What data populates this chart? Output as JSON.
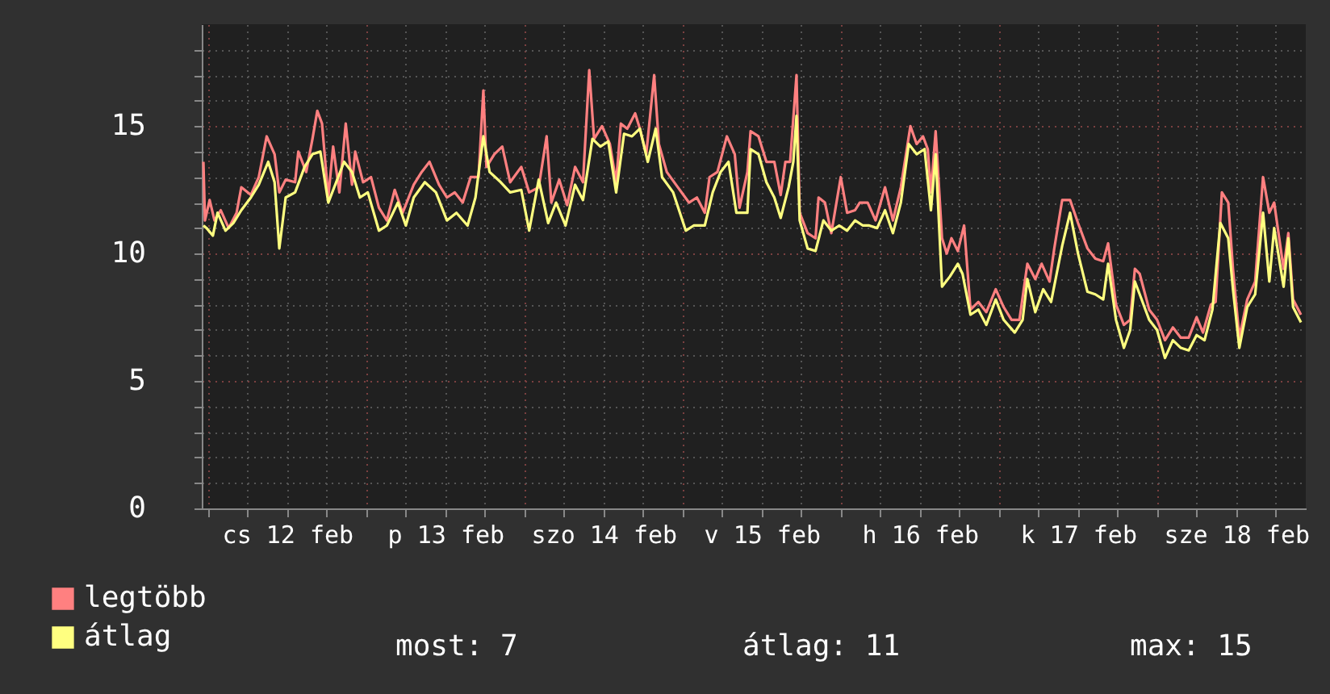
{
  "chart_data": {
    "type": "line",
    "xlim": [
      "--02-11T23:02",
      "--02-18T22:34"
    ],
    "ylim": [
      0,
      19
    ],
    "xticks": [
      {
        "value": "--02-12T00:00",
        "label": null
      },
      {
        "value": "--02-12T06:00",
        "label": null
      },
      {
        "value": "--02-12T12:00",
        "label": "cs 12 feb"
      },
      {
        "value": "--02-12T18:00",
        "label": null
      },
      {
        "value": "--02-13T00:00",
        "label": null
      },
      {
        "value": "--02-13T06:00",
        "label": null
      },
      {
        "value": "--02-13T12:00",
        "label": "p 13 feb"
      },
      {
        "value": "--02-13T18:00",
        "label": null
      },
      {
        "value": "--02-14T00:00",
        "label": null
      },
      {
        "value": "--02-14T06:00",
        "label": null
      },
      {
        "value": "--02-14T12:00",
        "label": "szo 14 feb"
      },
      {
        "value": "--02-14T18:00",
        "label": null
      },
      {
        "value": "--02-15T00:00",
        "label": null
      },
      {
        "value": "--02-15T06:00",
        "label": null
      },
      {
        "value": "--02-15T12:00",
        "label": "v 15 feb"
      },
      {
        "value": "--02-15T18:00",
        "label": null
      },
      {
        "value": "--02-16T00:00",
        "label": null
      },
      {
        "value": "--02-16T06:00",
        "label": null
      },
      {
        "value": "--02-16T12:00",
        "label": "h 16 feb"
      },
      {
        "value": "--02-16T18:00",
        "label": null
      },
      {
        "value": "--02-17T00:00",
        "label": null
      },
      {
        "value": "--02-17T06:00",
        "label": null
      },
      {
        "value": "--02-17T12:00",
        "label": "k 17 feb"
      },
      {
        "value": "--02-17T18:00",
        "label": null
      },
      {
        "value": "--02-18T00:00",
        "label": null
      },
      {
        "value": "--02-18T06:00",
        "label": null
      },
      {
        "value": "--02-18T12:00",
        "label": "sze 18 feb"
      },
      {
        "value": "--02-18T18:00",
        "label": null
      }
    ],
    "yticks": [
      0,
      {
        "value": 1,
        "label": null
      },
      {
        "value": 2,
        "label": null
      },
      {
        "value": 3,
        "label": null
      },
      {
        "value": 4,
        "label": null
      },
      5,
      {
        "value": 6,
        "label": null
      },
      {
        "value": 7,
        "label": null
      },
      {
        "value": 8,
        "label": null
      },
      {
        "value": 9,
        "label": null
      },
      10,
      {
        "value": 11,
        "label": null
      },
      {
        "value": 12,
        "label": null
      },
      {
        "value": 13,
        "label": null
      },
      {
        "value": 14,
        "label": null
      },
      15,
      {
        "value": 16,
        "label": null
      },
      {
        "value": 17,
        "label": null
      },
      {
        "value": 18,
        "label": null
      }
    ],
    "grid": true,
    "legend": "bottom left",
    "line_style": "solid",
    "marker": "none",
    "annotations": [
      "most: 7",
      "átlag: 11",
      "max: 15"
    ],
    "series": [
      {
        "name": "legtöbb",
        "color": "#ff8080",
        "x": [
          "--02-11T23:17",
          "--02-11T23:31",
          "--02-12T00:14",
          "--02-12T00:58",
          "--02-12T01:55",
          "--02-12T03:07",
          "--02-12T04:19",
          "--02-12T05:02",
          "--02-12T06:29",
          "--02-12T07:41",
          "--02-12T08:53",
          "--02-12T10:05",
          "--02-12T10:48",
          "--02-12T11:46",
          "--02-12T13:12",
          "--02-12T13:41",
          "--02-12T14:53",
          "--02-12T15:50",
          "--02-12T16:34",
          "--02-12T17:17",
          "--02-12T18:14",
          "--02-12T18:58",
          "--02-12T19:55",
          "--02-12T20:53",
          "--02-12T21:50",
          "--02-12T22:19",
          "--02-12T23:31",
          "--02-13T00:43",
          "--02-13T01:55",
          "--02-13T03:07",
          "--02-13T04:19",
          "--02-13T05:31",
          "--02-13T07:12",
          "--02-13T08:24",
          "--02-13T09:36",
          "--02-13T11:02",
          "--02-13T12:14",
          "--02-13T13:26",
          "--02-13T14:38",
          "--02-13T15:50",
          "--02-13T17:02",
          "--02-13T17:46",
          "--02-13T18:14",
          "--02-13T19:26",
          "--02-13T20:38",
          "--02-13T21:50",
          "--02-13T23:31",
          "--02-14T00:43",
          "--02-14T02:10",
          "--02-14T03:22",
          "--02-14T04:05",
          "--02-14T05:17",
          "--02-14T06:29",
          "--02-14T07:41",
          "--02-14T08:53",
          "--02-14T09:50",
          "--02-14T10:34",
          "--02-14T11:46",
          "--02-14T12:58",
          "--02-14T13:55",
          "--02-14T14:38",
          "--02-14T15:36",
          "--02-14T16:48",
          "--02-14T17:31",
          "--02-14T18:29",
          "--02-14T19:41",
          "--02-14T20:24",
          "--02-14T21:36",
          "--02-14T23:17",
          "--02-15T00:58",
          "--02-15T02:10",
          "--02-15T03:22",
          "--02-15T04:05",
          "--02-15T05:17",
          "--02-15T06:43",
          "--02-15T07:55",
          "--02-15T08:38",
          "--02-15T09:50",
          "--02-15T10:19",
          "--02-15T11:31",
          "--02-15T12:43",
          "--02-15T13:55",
          "--02-15T14:53",
          "--02-15T15:36",
          "--02-15T16:19",
          "--02-15T17:17",
          "--02-15T17:46",
          "--02-15T18:58",
          "--02-15T20:10",
          "--02-15T20:38",
          "--02-15T21:36",
          "--02-15T22:34",
          "--02-16T00:00",
          "--02-16T00:58",
          "--02-16T02:10",
          "--02-16T02:53",
          "--02-16T04:05",
          "--02-16T05:17",
          "--02-16T06:43",
          "--02-16T07:55",
          "--02-16T09:07",
          "--02-16T10:34",
          "--02-16T11:31",
          "--02-16T12:29",
          "--02-16T13:12",
          "--02-16T13:41",
          "--02-16T14:24",
          "--02-16T15:22",
          "--02-16T16:05",
          "--02-16T16:48",
          "--02-16T17:46",
          "--02-16T18:43",
          "--02-16T19:41",
          "--02-16T20:53",
          "--02-16T22:05",
          "--02-16T23:31",
          "--02-17T00:43",
          "--02-17T01:55",
          "--02-17T03:07",
          "--02-17T04:19",
          "--02-17T05:31",
          "--02-17T06:29",
          "--02-17T07:41",
          "--02-17T08:24",
          "--02-17T09:36",
          "--02-17T10:48",
          "--02-17T12:00",
          "--02-17T13:26",
          "--02-17T14:38",
          "--02-17T15:50",
          "--02-17T16:34",
          "--02-17T17:46",
          "--02-17T18:58",
          "--02-17T19:55",
          "--02-17T20:38",
          "--02-17T21:22",
          "--02-17T22:48",
          "--02-18T00:00",
          "--02-18T01:12",
          "--02-18T02:24",
          "--02-18T03:36",
          "--02-18T04:48",
          "--02-18T06:00",
          "--02-18T06:58",
          "--02-18T08:10",
          "--02-18T08:53",
          "--02-18T09:50",
          "--02-18T10:48",
          "--02-18T11:31",
          "--02-18T12:29",
          "--02-18T13:41",
          "--02-18T14:53",
          "--02-18T16:05",
          "--02-18T17:02",
          "--02-18T17:46",
          "--02-18T19:12",
          "--02-18T19:55",
          "--02-18T20:38",
          "--02-18T21:50"
        ],
        "values": [
          13.6,
          11.3,
          12.1,
          11.3,
          11.7,
          11.0,
          11.6,
          12.6,
          12.3,
          13.0,
          14.6,
          13.9,
          12.4,
          12.9,
          12.8,
          14.0,
          13.2,
          14.5,
          15.6,
          15.1,
          12.2,
          14.2,
          12.4,
          15.1,
          12.7,
          14.0,
          12.8,
          13.0,
          11.8,
          11.3,
          12.5,
          11.6,
          12.7,
          13.2,
          13.6,
          12.7,
          12.2,
          12.4,
          12.0,
          13.0,
          13.0,
          16.4,
          13.4,
          13.9,
          14.2,
          12.8,
          13.4,
          12.4,
          12.6,
          14.6,
          12.0,
          12.9,
          11.9,
          13.4,
          12.8,
          17.2,
          14.5,
          15.0,
          14.3,
          12.8,
          15.1,
          14.9,
          15.5,
          14.9,
          13.9,
          17.0,
          14.3,
          13.2,
          12.6,
          12.0,
          12.2,
          11.6,
          13.0,
          13.2,
          14.6,
          13.9,
          11.8,
          13.2,
          14.8,
          14.6,
          13.6,
          13.6,
          12.3,
          13.6,
          13.6,
          17.0,
          11.6,
          10.8,
          10.6,
          12.2,
          12.0,
          10.8,
          13.0,
          11.6,
          11.7,
          12.0,
          12.0,
          11.3,
          12.6,
          11.3,
          12.6,
          15.0,
          14.3,
          14.6,
          14.1,
          12.4,
          14.8,
          10.6,
          10.0,
          10.6,
          10.1,
          11.1,
          7.8,
          8.1,
          7.7,
          8.6,
          7.9,
          7.4,
          7.4,
          9.6,
          9.0,
          9.6,
          8.9,
          10.2,
          12.1,
          12.1,
          11.2,
          10.2,
          9.8,
          9.7,
          10.4,
          8.0,
          7.2,
          7.4,
          9.4,
          9.2,
          7.8,
          7.4,
          6.6,
          7.1,
          6.7,
          6.7,
          7.5,
          6.9,
          8.0,
          8.1,
          12.4,
          12.0,
          9.4,
          6.7,
          8.2,
          8.9,
          13.0,
          11.6,
          12.0,
          9.4,
          10.8,
          8.2,
          7.6
        ]
      },
      {
        "name": "átlag",
        "color": "#ffff80",
        "x": [
          "--02-11T23:17",
          "--02-11T23:46",
          "--02-12T00:43",
          "--02-12T01:26",
          "--02-12T02:38",
          "--02-12T03:50",
          "--02-12T05:02",
          "--02-12T06:29",
          "--02-12T07:41",
          "--02-12T09:07",
          "--02-12T10:05",
          "--02-12T10:48",
          "--02-12T11:46",
          "--02-12T13:12",
          "--02-12T14:38",
          "--02-12T15:50",
          "--02-12T17:02",
          "--02-12T18:14",
          "--02-12T19:26",
          "--02-12T20:38",
          "--02-12T21:50",
          "--02-12T23:02",
          "--02-13T00:14",
          "--02-13T01:55",
          "--02-13T03:07",
          "--02-13T04:48",
          "--02-13T06:00",
          "--02-13T07:12",
          "--02-13T08:53",
          "--02-13T10:34",
          "--02-13T12:14",
          "--02-13T13:41",
          "--02-13T15:22",
          "--02-13T16:34",
          "--02-13T17:46",
          "--02-13T18:43",
          "--02-13T20:24",
          "--02-13T21:50",
          "--02-13T23:31",
          "--02-14T00:43",
          "--02-14T02:10",
          "--02-14T03:36",
          "--02-14T04:48",
          "--02-14T06:14",
          "--02-14T07:41",
          "--02-14T08:53",
          "--02-14T10:19",
          "--02-14T11:31",
          "--02-14T12:43",
          "--02-14T13:55",
          "--02-14T15:07",
          "--02-14T16:19",
          "--02-14T17:31",
          "--02-14T18:43",
          "--02-14T19:55",
          "--02-14T20:53",
          "--02-14T22:34",
          "--02-15T00:29",
          "--02-15T01:41",
          "--02-15T03:22",
          "--02-15T04:34",
          "--02-15T05:46",
          "--02-15T06:58",
          "--02-15T08:10",
          "--02-15T09:50",
          "--02-15T10:19",
          "--02-15T11:31",
          "--02-15T12:43",
          "--02-15T13:55",
          "--02-15T14:53",
          "--02-15T16:05",
          "--02-15T16:48",
          "--02-15T17:17",
          "--02-15T17:46",
          "--02-15T18:58",
          "--02-15T20:10",
          "--02-15T21:22",
          "--02-15T22:34",
          "--02-15T23:46",
          "--02-16T00:58",
          "--02-16T02:10",
          "--02-16T03:22",
          "--02-16T04:19",
          "--02-16T05:31",
          "--02-16T06:43",
          "--02-16T07:55",
          "--02-16T09:07",
          "--02-16T10:19",
          "--02-16T11:31",
          "--02-16T12:43",
          "--02-16T13:41",
          "--02-16T14:24",
          "--02-16T15:22",
          "--02-16T16:34",
          "--02-16T17:46",
          "--02-16T18:29",
          "--02-16T19:41",
          "--02-16T20:53",
          "--02-16T22:05",
          "--02-16T23:31",
          "--02-17T00:43",
          "--02-17T02:24",
          "--02-17T03:36",
          "--02-17T04:19",
          "--02-17T05:31",
          "--02-17T06:43",
          "--02-17T07:55",
          "--02-17T09:36",
          "--02-17T10:48",
          "--02-17T12:00",
          "--02-17T13:26",
          "--02-17T14:38",
          "--02-17T15:50",
          "--02-17T16:34",
          "--02-17T17:46",
          "--02-17T18:58",
          "--02-17T19:55",
          "--02-17T20:38",
          "--02-17T21:22",
          "--02-17T22:48",
          "--02-18T00:00",
          "--02-18T01:12",
          "--02-18T02:24",
          "--02-18T03:36",
          "--02-18T04:48",
          "--02-18T06:00",
          "--02-18T07:12",
          "--02-18T08:24",
          "--02-18T09:36",
          "--02-18T10:48",
          "--02-18T11:31",
          "--02-18T12:29",
          "--02-18T13:41",
          "--02-18T14:53",
          "--02-18T16:05",
          "--02-18T17:02",
          "--02-18T17:46",
          "--02-18T19:12",
          "--02-18T19:55",
          "--02-18T20:38",
          "--02-18T21:50"
        ],
        "values": [
          11.1,
          11.0,
          10.7,
          11.6,
          10.9,
          11.2,
          11.7,
          12.2,
          12.7,
          13.6,
          12.8,
          10.2,
          12.2,
          12.4,
          13.4,
          13.9,
          14.0,
          12.0,
          12.8,
          13.6,
          13.2,
          12.2,
          12.4,
          10.9,
          11.1,
          12.0,
          11.1,
          12.2,
          12.8,
          12.4,
          11.3,
          11.6,
          11.1,
          12.2,
          14.6,
          13.2,
          12.8,
          12.4,
          12.5,
          10.9,
          12.9,
          11.2,
          12.0,
          11.1,
          12.7,
          12.1,
          14.5,
          14.2,
          14.4,
          12.4,
          14.7,
          14.6,
          14.9,
          13.6,
          14.9,
          13.0,
          12.4,
          10.9,
          11.1,
          11.1,
          12.4,
          13.2,
          13.6,
          11.6,
          11.6,
          14.1,
          13.9,
          12.8,
          12.2,
          11.4,
          12.6,
          13.6,
          15.4,
          11.3,
          10.2,
          10.1,
          11.3,
          10.9,
          11.1,
          10.9,
          11.3,
          11.1,
          11.1,
          11.0,
          11.7,
          10.8,
          12.0,
          14.3,
          13.9,
          14.1,
          11.7,
          13.9,
          8.7,
          9.1,
          9.6,
          9.2,
          7.6,
          7.8,
          7.2,
          8.2,
          7.4,
          6.9,
          7.4,
          9.0,
          7.7,
          8.6,
          8.1,
          10.3,
          11.6,
          10.0,
          8.5,
          8.4,
          8.2,
          9.6,
          7.4,
          6.3,
          7.0,
          8.9,
          8.4,
          7.4,
          7.0,
          5.9,
          6.6,
          6.3,
          6.2,
          6.8,
          6.6,
          7.8,
          11.2,
          10.6,
          8.6,
          6.3,
          7.9,
          8.4,
          11.6,
          8.9,
          11.0,
          8.7,
          10.6,
          7.9,
          7.3
        ]
      }
    ]
  }
}
